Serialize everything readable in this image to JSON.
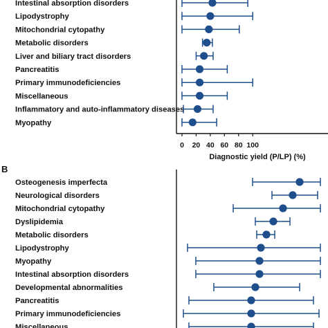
{
  "colors": {
    "marker": "#1f4e8c",
    "axis": "#111111"
  },
  "chart_data": [
    {
      "type": "forest",
      "panel": "",
      "xlabel": "Diagnostic yield (P/LP) (%)",
      "xlim": [
        0,
        100
      ],
      "xticks": [
        "0",
        "20",
        "40",
        "60",
        "80",
        "100"
      ],
      "categories": [
        "Intestinal absorption disorders",
        "Lipodystrophy",
        "Mitochondrial cytopathy",
        "Metabolic disorders",
        "Liver and biliary tract disorders",
        "Pancreatitis",
        "Primary immunodeficiencies",
        "Miscellaneous",
        "Inflammatory and auto-inflammatory diseases",
        "Myopathy"
      ],
      "estimate": [
        43,
        40,
        38,
        35,
        31,
        25,
        25,
        25,
        22,
        15
      ],
      "ci_lower": [
        0,
        0,
        0,
        29,
        20,
        0,
        0,
        0,
        2,
        0
      ],
      "ci_upper": [
        93,
        100,
        81,
        43,
        44,
        64,
        100,
        64,
        44,
        49
      ]
    },
    {
      "type": "forest",
      "panel": "B",
      "categories": [
        "Osteogenesis imperfecta",
        "Neurological disorders",
        "Mitochondrial cytopathy",
        "Dyslipidemia",
        "Metabolic disorders",
        "Lipodystrophy",
        "Myopathy",
        "Intestinal absorption disorders",
        "Developmental abnormalities",
        "Pancreatitis",
        "Primary immunodeficiencies",
        "Miscellaneous"
      ],
      "estimate": [
        85,
        80,
        73,
        66,
        61,
        57,
        56,
        56,
        53,
        50,
        50,
        50
      ],
      "ci_lower": [
        51,
        65,
        37,
        53,
        54,
        4,
        10,
        10,
        23,
        5,
        1,
        5
      ],
      "ci_upper": [
        100,
        98,
        100,
        78,
        67,
        100,
        100,
        100,
        85,
        95,
        99,
        95
      ]
    }
  ]
}
